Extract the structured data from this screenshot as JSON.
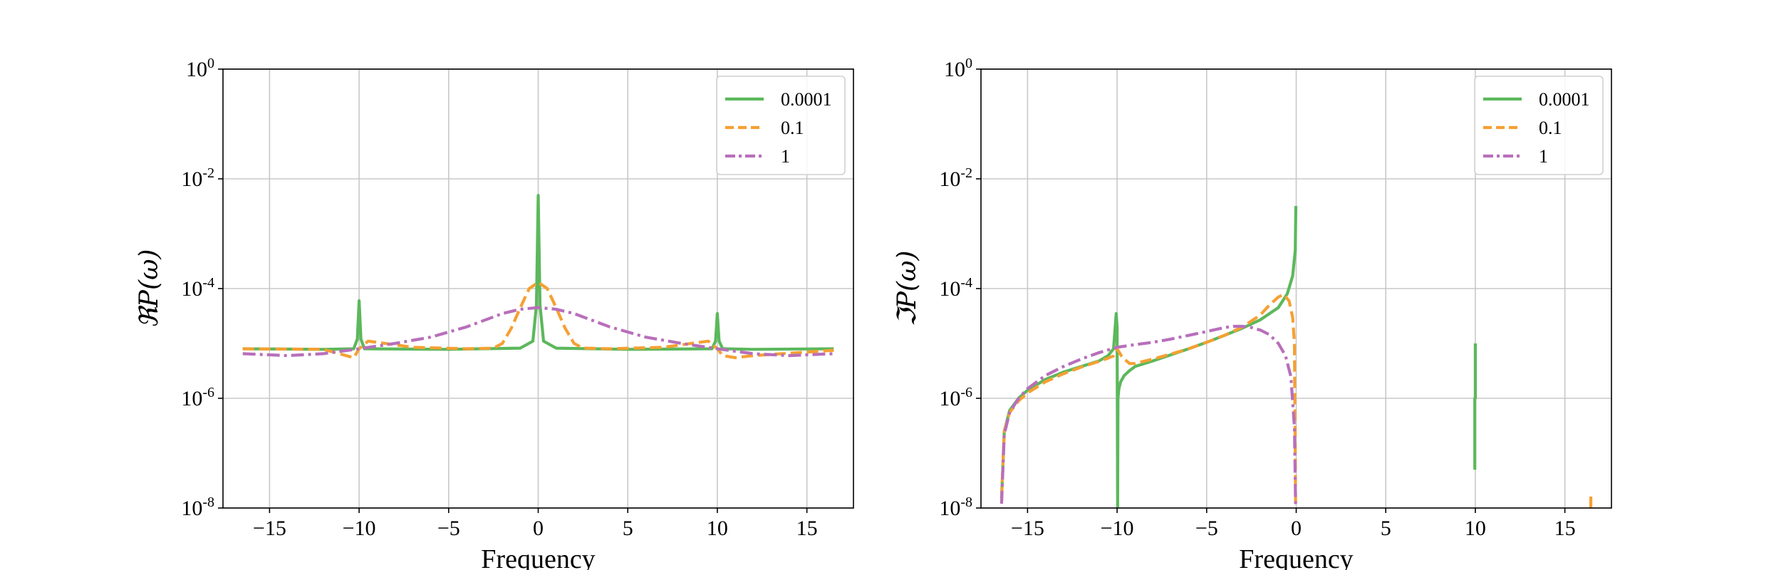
{
  "chart_data": [
    {
      "type": "line",
      "title": "",
      "xlabel": "Frequency",
      "ylabel": "ℜP(ω)",
      "yscale": "log",
      "xlim": [
        -17.6,
        17.6
      ],
      "ylim": [
        1e-08,
        1
      ],
      "xticks": [
        -15,
        -10,
        -5,
        0,
        5,
        10,
        15
      ],
      "xtick_labels": [
        "−15",
        "−10",
        "−5",
        "0",
        "5",
        "10",
        "15"
      ],
      "yticks": [
        1e-08,
        1e-06,
        0.0001,
        0.01,
        1
      ],
      "ytick_labels": [
        {
          "base": "10",
          "exp": "-8"
        },
        {
          "base": "10",
          "exp": "-6"
        },
        {
          "base": "10",
          "exp": "-4"
        },
        {
          "base": "10",
          "exp": "-2"
        },
        {
          "base": "10",
          "exp": "0"
        }
      ],
      "grid": true,
      "legend": "top-right",
      "series": [
        {
          "name": "0.0001",
          "color": "#5cb85c",
          "dash": "solid",
          "x": [
            -16.5,
            -12.0,
            -10.3,
            -10.1,
            -10.0,
            -9.9,
            -9.7,
            -5.0,
            -1.0,
            -0.3,
            -0.1,
            0.0,
            0.1,
            0.3,
            1.0,
            5.0,
            9.7,
            9.9,
            10.0,
            10.1,
            10.3,
            12.0,
            16.5
          ],
          "y": [
            8e-06,
            7.8e-06,
            8e-06,
            1.2e-05,
            6e-05,
            1.2e-05,
            8e-06,
            7.8e-06,
            8.2e-06,
            1.1e-05,
            5e-05,
            0.005,
            5e-05,
            1.1e-05,
            8.2e-06,
            7.8e-06,
            8e-06,
            1.1e-05,
            3.5e-05,
            1.1e-05,
            8e-06,
            7.8e-06,
            8e-06
          ]
        },
        {
          "name": "0.1",
          "color": "#f5a033",
          "dash": "dashed",
          "x": [
            -16.5,
            -12.0,
            -10.3,
            -10.0,
            -9.5,
            -9.0,
            -7.0,
            -4.0,
            -2.5,
            -2.0,
            -1.5,
            -1.0,
            -0.5,
            0.0,
            0.5,
            1.0,
            1.5,
            2.0,
            2.5,
            4.0,
            7.0,
            9.0,
            9.5,
            10.0,
            10.3,
            11.0,
            12.0,
            16.5
          ],
          "y": [
            8e-06,
            7.8e-06,
            5.5e-06,
            8e-06,
            1.1e-05,
            1.05e-05,
            8.5e-06,
            8e-06,
            8.2e-06,
            1e-05,
            1.9e-05,
            4.5e-05,
            0.0001,
            0.00013,
            0.0001,
            4.5e-05,
            1.9e-05,
            1e-05,
            8.2e-06,
            8e-06,
            8.5e-06,
            1.05e-05,
            1.1e-05,
            8e-06,
            6e-06,
            5.5e-06,
            6e-06,
            7.5e-06
          ]
        },
        {
          "name": "1",
          "color": "#b86fbb",
          "dash": "dashdot",
          "x": [
            -16.5,
            -14.0,
            -12.0,
            -10.0,
            -8.0,
            -6.0,
            -4.0,
            -2.0,
            -1.0,
            0.0,
            1.0,
            2.0,
            4.0,
            6.0,
            8.0,
            10.0,
            12.0,
            14.0,
            16.5
          ],
          "y": [
            6.5e-06,
            6e-06,
            6.5e-06,
            8e-06,
            1e-05,
            1.3e-05,
            2e-05,
            3.5e-05,
            4.2e-05,
            4.5e-05,
            4.2e-05,
            3.5e-05,
            2e-05,
            1.3e-05,
            1e-05,
            8e-06,
            6.5e-06,
            6e-06,
            6.5e-06
          ]
        }
      ]
    },
    {
      "type": "line",
      "title": "",
      "xlabel": "Frequency",
      "ylabel": "ℑP(ω)",
      "yscale": "log",
      "xlim": [
        -17.6,
        17.6
      ],
      "ylim": [
        1e-08,
        1
      ],
      "xticks": [
        -15,
        -10,
        -5,
        0,
        5,
        10,
        15
      ],
      "xtick_labels": [
        "−15",
        "−10",
        "−5",
        "0",
        "5",
        "10",
        "15"
      ],
      "yticks": [
        1e-08,
        1e-06,
        0.0001,
        0.01,
        1
      ],
      "ytick_labels": [
        {
          "base": "10",
          "exp": "-8"
        },
        {
          "base": "10",
          "exp": "-6"
        },
        {
          "base": "10",
          "exp": "-4"
        },
        {
          "base": "10",
          "exp": "-2"
        },
        {
          "base": "10",
          "exp": "0"
        }
      ],
      "grid": true,
      "legend": "top-right",
      "series": [
        {
          "name": "0.0001",
          "color": "#5cb85c",
          "dash": "solid",
          "segments": [
            {
              "x": [
                -16.45,
                -16.3,
                -16.0,
                -15.5,
                -15.0,
                -14.0,
                -13.0,
                -12.0,
                -11.0,
                -10.5,
                -10.2,
                -10.05,
                -10.0,
                -9.97,
                -9.95,
                -9.9,
                -9.8,
                -9.6,
                -9.3,
                -9.0,
                -8.0,
                -7.0,
                -6.0,
                -5.0,
                -4.0,
                -3.0,
                -2.0,
                -1.0,
                -0.5,
                -0.2,
                -0.05,
                -0.02
              ],
              "y": [
                1.5e-08,
                2.5e-07,
                6e-07,
                1e-06,
                1.4e-06,
                2.2e-06,
                3e-06,
                3.8e-06,
                4.8e-06,
                6e-06,
                8e-06,
                3.5e-05,
                2e-05,
                1e-08,
                1e-06,
                1.5e-06,
                2e-06,
                2.6e-06,
                3.2e-06,
                3.8e-06,
                4.8e-06,
                6.2e-06,
                8e-06,
                1.05e-05,
                1.4e-05,
                1.9e-05,
                2.7e-05,
                4.5e-05,
                8e-05,
                0.00017,
                0.0005,
                0.0032
              ]
            },
            {
              "x": [
                9.97,
                9.97,
                10.0,
                10.0
              ],
              "y": [
                5e-08,
                1e-06,
                1e-06,
                1e-05
              ]
            }
          ]
        },
        {
          "name": "0.1",
          "color": "#f5a033",
          "dash": "dashed",
          "segments": [
            {
              "x": [
                -16.45,
                -16.3,
                -16.0,
                -15.5,
                -15.0,
                -14.0,
                -13.0,
                -12.0,
                -11.0,
                -10.5,
                -10.2,
                -10.0,
                -9.7,
                -9.3,
                -9.0,
                -8.0,
                -7.0,
                -6.0,
                -5.0,
                -4.0,
                -3.0,
                -2.0,
                -1.5,
                -1.0,
                -0.7,
                -0.4,
                -0.2,
                -0.1,
                -0.03
              ],
              "y": [
                1.5e-08,
                2.5e-07,
                5.5e-07,
                9e-07,
                1.25e-06,
                2e-06,
                2.8e-06,
                3.7e-06,
                4.7e-06,
                5.4e-06,
                5.9e-06,
                8e-06,
                5.5e-06,
                4.3e-06,
                4.3e-06,
                5.2e-06,
                6.4e-06,
                8e-06,
                1.05e-05,
                1.4e-05,
                2e-05,
                3.3e-05,
                5e-05,
                7e-05,
                7.8e-05,
                6e-05,
                3e-05,
                1e-05,
                1e-08
              ]
            },
            {
              "x": [
                16.45,
                16.45
              ],
              "y": [
                1e-08,
                1.8e-08
              ]
            }
          ]
        },
        {
          "name": "1",
          "color": "#b86fbb",
          "dash": "dashdot",
          "segments": [
            {
              "x": [
                -16.45,
                -16.3,
                -16.0,
                -15.5,
                -15.0,
                -14.0,
                -13.0,
                -12.0,
                -11.0,
                -10.0,
                -9.0,
                -8.0,
                -7.0,
                -6.0,
                -5.0,
                -4.0,
                -3.5,
                -3.0,
                -2.5,
                -2.0,
                -1.5,
                -1.0,
                -0.6,
                -0.3,
                -0.1,
                -0.03
              ],
              "y": [
                1.2e-08,
                2.2e-07,
                5.5e-07,
                1e-06,
                1.5e-06,
                2.6e-06,
                3.8e-06,
                5.2e-06,
                6.8e-06,
                8.5e-06,
                9.5e-06,
                1.05e-05,
                1.2e-05,
                1.4e-05,
                1.65e-05,
                1.95e-05,
                2.05e-05,
                2.05e-05,
                1.95e-05,
                1.75e-05,
                1.45e-05,
                1e-05,
                6e-06,
                2.5e-06,
                3e-07,
                1e-08
              ]
            }
          ]
        }
      ]
    }
  ]
}
